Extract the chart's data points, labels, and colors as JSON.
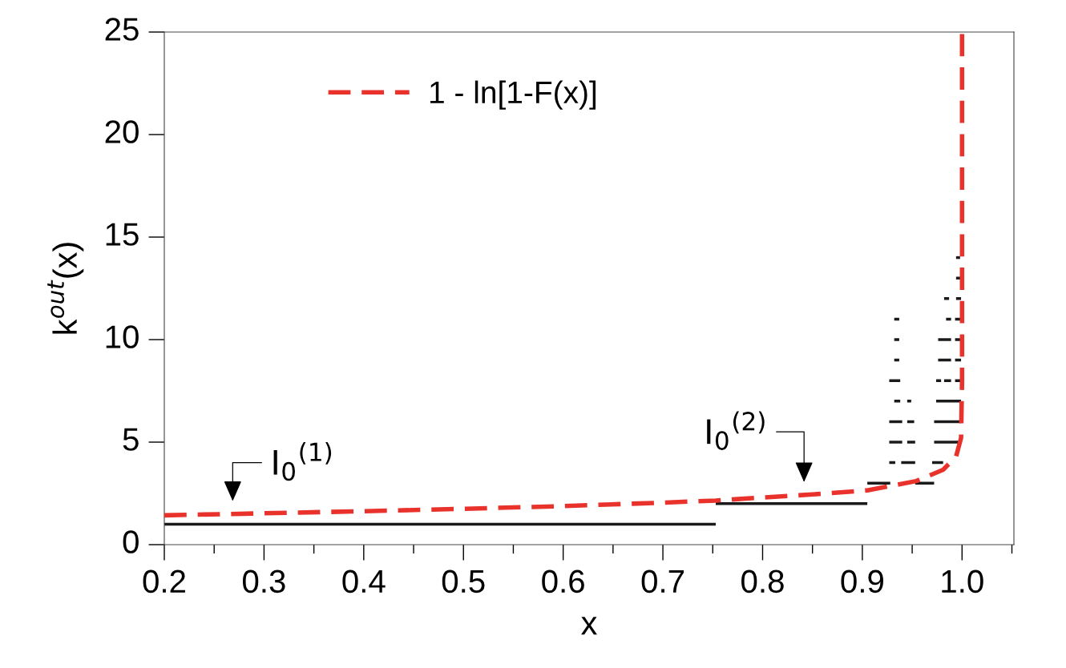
{
  "chart_data": {
    "type": "line",
    "xlabel": "x",
    "ylabel": "k$^{out}$(x)",
    "xlim": [
      0.2,
      1.052
    ],
    "xticks": [
      {
        "value": 0.2,
        "label": "0.2"
      },
      {
        "value": 0.3,
        "label": "0.3"
      },
      {
        "value": 0.4,
        "label": "0.4"
      },
      {
        "value": 0.5,
        "label": "0.5"
      },
      {
        "value": 0.6,
        "label": "0.6"
      },
      {
        "value": 0.7,
        "label": "0.7"
      },
      {
        "value": 0.8,
        "label": "0.8"
      },
      {
        "value": 0.9,
        "label": "0.9"
      },
      {
        "value": 1.0,
        "label": "1.0"
      }
    ],
    "ylim": [
      0,
      25
    ],
    "yticks": [
      0,
      5,
      10,
      15,
      20,
      25
    ],
    "grid": false,
    "legend": "top left",
    "series": [
      {
        "color": "#1a1a1a",
        "line_style": "solid",
        "x": [
          0.2,
          0.753
        ],
        "values": [
          1,
          1
        ]
      },
      {
        "color": "#1a1a1a",
        "line_style": "solid",
        "x": [
          0.753,
          0.905
        ],
        "values": [
          2,
          2
        ]
      },
      {
        "color": "#1a1a1a",
        "line_style": "solid",
        "x": [
          0.905,
          0.928,
          0.94,
          0.953,
          0.972
        ],
        "values": [
          3,
          3,
          null,
          3,
          3
        ]
      },
      {
        "color": "#1a1a1a",
        "line_style": "solid",
        "x": [
          0.927,
          0.933,
          0.936,
          0.939,
          0.953,
          0.96,
          0.97,
          0.981
        ],
        "values": [
          4,
          4,
          null,
          4,
          4,
          null,
          4,
          4
        ]
      },
      {
        "color": "#1a1a1a",
        "line_style": "solid",
        "x": [
          0.927,
          0.94,
          0.942,
          0.945,
          0.953,
          0.96,
          0.972,
          0.997
        ],
        "values": [
          5,
          5,
          null,
          5,
          5,
          null,
          5,
          5
        ]
      },
      {
        "color": "#1a1a1a",
        "line_style": "solid",
        "x": [
          0.927,
          0.94,
          0.942,
          0.945,
          0.952,
          0.96,
          0.972,
          0.999
        ],
        "values": [
          6,
          6,
          null,
          6,
          6,
          null,
          6,
          6
        ]
      },
      {
        "color": "#1a1a1a",
        "line_style": "solid",
        "x": [
          0.932,
          0.938,
          0.942,
          0.945,
          0.949,
          0.96,
          0.974,
          0.999
        ],
        "values": [
          7,
          7,
          null,
          7,
          7,
          null,
          7,
          7
        ]
      },
      {
        "color": "#1a1a1a",
        "line_style": "solid",
        "x": [
          0.927,
          0.938,
          0.96,
          0.974,
          0.979,
          0.98,
          0.982,
          0.989,
          0.991,
          0.993,
          0.999
        ],
        "values": [
          8,
          8,
          null,
          8,
          8,
          null,
          8,
          8,
          null,
          8,
          8
        ]
      },
      {
        "color": "#1a1a1a",
        "line_style": "solid",
        "x": [
          0.932,
          0.937,
          0.96,
          0.976,
          0.989,
          0.991,
          0.993,
          0.999
        ],
        "values": [
          9,
          9,
          null,
          9,
          9,
          null,
          9,
          9
        ]
      },
      {
        "color": "#1a1a1a",
        "line_style": "solid",
        "x": [
          0.932,
          0.937,
          0.96,
          0.976,
          0.989,
          0.991,
          0.993,
          0.999
        ],
        "values": [
          10,
          10,
          null,
          10,
          10,
          null,
          10,
          10
        ]
      },
      {
        "color": "#1a1a1a",
        "line_style": "solid",
        "x": [
          0.932,
          0.937,
          0.96,
          0.984,
          0.989,
          0.991,
          0.993,
          0.999
        ],
        "values": [
          11,
          11,
          null,
          11,
          11,
          null,
          11,
          11
        ]
      },
      {
        "color": "#1a1a1a",
        "line_style": "solid",
        "x": [
          0.982,
          0.987,
          0.99,
          0.994,
          0.999
        ],
        "values": [
          12,
          12,
          null,
          12,
          12
        ]
      },
      {
        "color": "#1a1a1a",
        "line_style": "solid",
        "x": [
          0.994,
          0.999
        ],
        "values": [
          13,
          13
        ]
      },
      {
        "color": "#1a1a1a",
        "line_style": "solid",
        "x": [
          0.994,
          0.998
        ],
        "values": [
          14,
          14
        ]
      },
      {
        "name": "1 - ln[1-F(x)]",
        "color": "#e8322b",
        "line_style": "dashed",
        "x": [
          0.2,
          0.3,
          0.4,
          0.5,
          0.6,
          0.7,
          0.753,
          0.8,
          0.85,
          0.905,
          0.954,
          0.981,
          0.994,
          0.999,
          1.0,
          1.0
        ],
        "values": [
          1.43,
          1.53,
          1.63,
          1.75,
          1.88,
          2.05,
          2.15,
          2.3,
          2.45,
          2.65,
          3.1,
          3.65,
          4.3,
          5.2,
          8,
          25
        ]
      }
    ],
    "annotations": [
      "I$_{0}$$^{(1)}$",
      "I$_{0}$$^{(2)}$"
    ]
  }
}
